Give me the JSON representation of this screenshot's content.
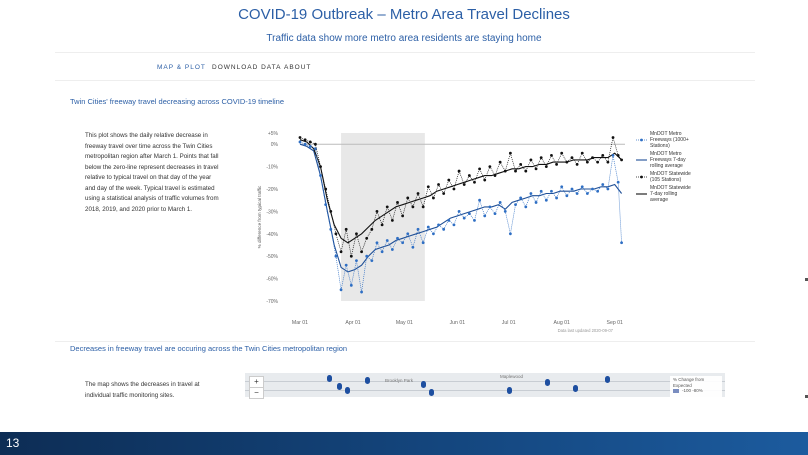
{
  "header": {
    "title": "COVID-19 Outbreak – Metro Area Travel Declines",
    "subtitle": "Traffic data show more metro area residents are staying home"
  },
  "nav": [
    "MAP & PLOT",
    "DOWNLOAD DATA",
    "ABOUT"
  ],
  "sections": {
    "plot_heading": "Twin Cities' freeway travel decreasing across COVID-19 timeline",
    "plot_description": "This plot shows the daily relative decrease in freeway travel over time across the Twin Cities metropolitan region after March 1. Points that fall below the zero-line represent decreases in travel relative to typical travel on that day of the year and day of the week. Typical travel is estimated using a statistical analysis of traffic volumes from 2018, 2019, and 2020 prior to March 1.",
    "map_heading": "Decreases in freeway travel are occuring across the Twin Cities metropolitan region",
    "map_description": "The map shows the decreases in travel at individual traffic monitoring sites."
  },
  "map": {
    "zoom_in": "+",
    "zoom_out": "−",
    "labels": [
      "Brooklyn Park",
      "Maplewood"
    ],
    "legend_title": "% Change from Expected",
    "legend_row": "-100   -80%"
  },
  "footer": {
    "slide_number": "13"
  },
  "colors": {
    "accent": "#2c5fa6",
    "metro_points": "#2f6fc4",
    "metro_line": "#1f4f96",
    "statewide_points": "#111111",
    "statewide_line": "#111111",
    "shade": "#e8e8e8"
  },
  "chart_data": {
    "type": "line",
    "xlabel": "",
    "ylabel": "% difference from typical traffic",
    "ylim": [
      -70,
      5
    ],
    "yticks": [
      "+5%",
      "0%",
      "-10%",
      "-20%",
      "-30%",
      "-40%",
      "-50%",
      "-60%",
      "-70%"
    ],
    "ytick_values": [
      5,
      0,
      -10,
      -20,
      -30,
      -40,
      -50,
      -60,
      -70
    ],
    "xticks": [
      "Mar 01",
      "Apr 01",
      "May 01",
      "Jun 01",
      "Jul 01",
      "Aug 01",
      "Sep 01"
    ],
    "xtick_days": [
      0,
      31,
      61,
      92,
      122,
      153,
      184
    ],
    "shaded_range_days": [
      24,
      73
    ],
    "zero_line": true,
    "note": "Data last updated 2020-09-07",
    "series": [
      {
        "name": "MnDOT Metro Freeways (1000+ Stations)",
        "style": "dotted-points",
        "color": "#2f6fc4",
        "days": [
          0,
          3,
          6,
          9,
          12,
          15,
          18,
          21,
          24,
          27,
          30,
          33,
          36,
          39,
          42,
          45,
          48,
          51,
          54,
          57,
          60,
          63,
          66,
          69,
          72,
          75,
          78,
          81,
          84,
          87,
          90,
          93,
          96,
          99,
          102,
          105,
          108,
          111,
          114,
          117,
          120,
          123,
          126,
          129,
          132,
          135,
          138,
          141,
          144,
          147,
          150,
          153,
          156,
          159,
          162,
          165,
          168,
          171,
          174,
          177,
          180,
          183,
          186,
          188
        ],
        "values": [
          1,
          0,
          -1,
          -2,
          -14,
          -27,
          -38,
          -50,
          -65,
          -54,
          -63,
          -52,
          -66,
          -50,
          -52,
          -44,
          -48,
          -43,
          -47,
          -42,
          -44,
          -40,
          -46,
          -38,
          -44,
          -37,
          -40,
          -36,
          -38,
          -34,
          -36,
          -30,
          -33,
          -31,
          -34,
          -25,
          -32,
          -28,
          -31,
          -26,
          -30,
          -40,
          -27,
          -24,
          -28,
          -22,
          -26,
          -21,
          -25,
          -21,
          -24,
          -19,
          -23,
          -20,
          -22,
          -19,
          -22,
          -20,
          -21,
          -18,
          -20,
          -5,
          -17,
          -44
        ]
      },
      {
        "name": "MnDOT Metro Freeways 7-day rolling average",
        "style": "line",
        "color": "#1f4f96",
        "days": [
          0,
          4,
          8,
          12,
          16,
          20,
          24,
          28,
          32,
          36,
          40,
          44,
          48,
          52,
          56,
          60,
          64,
          68,
          72,
          76,
          80,
          84,
          88,
          92,
          96,
          100,
          104,
          108,
          112,
          116,
          120,
          124,
          128,
          132,
          136,
          140,
          144,
          148,
          152,
          156,
          160,
          164,
          168,
          172,
          176,
          180,
          184,
          188
        ],
        "values": [
          0,
          -1,
          -3,
          -14,
          -30,
          -45,
          -55,
          -57,
          -56,
          -54,
          -50,
          -47,
          -46,
          -45,
          -43,
          -42,
          -41,
          -40,
          -39,
          -38,
          -37,
          -35,
          -33,
          -32,
          -31,
          -30,
          -29,
          -28,
          -28,
          -27,
          -29,
          -26,
          -25,
          -24,
          -23,
          -23,
          -22,
          -22,
          -21,
          -21,
          -21,
          -20,
          -20,
          -20,
          -19,
          -19,
          -18,
          -22
        ]
      },
      {
        "name": "MnDOT Statewide (105 Stations)",
        "style": "dotted-points",
        "color": "#111111",
        "days": [
          0,
          3,
          6,
          9,
          12,
          15,
          18,
          21,
          24,
          27,
          30,
          33,
          36,
          39,
          42,
          45,
          48,
          51,
          54,
          57,
          60,
          63,
          66,
          69,
          72,
          75,
          78,
          81,
          84,
          87,
          90,
          93,
          96,
          99,
          102,
          105,
          108,
          111,
          114,
          117,
          120,
          123,
          126,
          129,
          132,
          135,
          138,
          141,
          144,
          147,
          150,
          153,
          156,
          159,
          162,
          165,
          168,
          171,
          174,
          177,
          180,
          183,
          186,
          188
        ],
        "values": [
          3,
          2,
          1,
          0,
          -10,
          -20,
          -30,
          -40,
          -48,
          -38,
          -50,
          -40,
          -48,
          -42,
          -38,
          -30,
          -36,
          -28,
          -34,
          -26,
          -32,
          -24,
          -28,
          -22,
          -28,
          -19,
          -24,
          -18,
          -22,
          -16,
          -20,
          -12,
          -18,
          -14,
          -17,
          -11,
          -16,
          -10,
          -14,
          -8,
          -12,
          -4,
          -12,
          -9,
          -12,
          -7,
          -11,
          -6,
          -10,
          -5,
          -9,
          -4,
          -8,
          -6,
          -9,
          -4,
          -8,
          -6,
          -8,
          -5,
          -8,
          3,
          -5,
          -7
        ]
      },
      {
        "name": "MnDOT Statewide 7-day rolling average",
        "style": "line",
        "color": "#111111",
        "days": [
          0,
          4,
          8,
          12,
          16,
          20,
          24,
          28,
          32,
          36,
          40,
          44,
          48,
          52,
          56,
          60,
          64,
          68,
          72,
          76,
          80,
          84,
          88,
          92,
          96,
          100,
          104,
          108,
          112,
          116,
          120,
          124,
          128,
          132,
          136,
          140,
          144,
          148,
          152,
          156,
          160,
          164,
          168,
          172,
          176,
          180,
          184,
          188
        ],
        "values": [
          2,
          1,
          -2,
          -10,
          -25,
          -36,
          -42,
          -44,
          -42,
          -40,
          -37,
          -34,
          -32,
          -30,
          -28,
          -27,
          -26,
          -25,
          -24,
          -23,
          -21,
          -20,
          -19,
          -18,
          -17,
          -16,
          -15,
          -14,
          -14,
          -13,
          -12,
          -11,
          -11,
          -10,
          -10,
          -9,
          -9,
          -8,
          -8,
          -8,
          -7,
          -7,
          -7,
          -6,
          -6,
          -6,
          -4,
          -7
        ]
      }
    ]
  }
}
